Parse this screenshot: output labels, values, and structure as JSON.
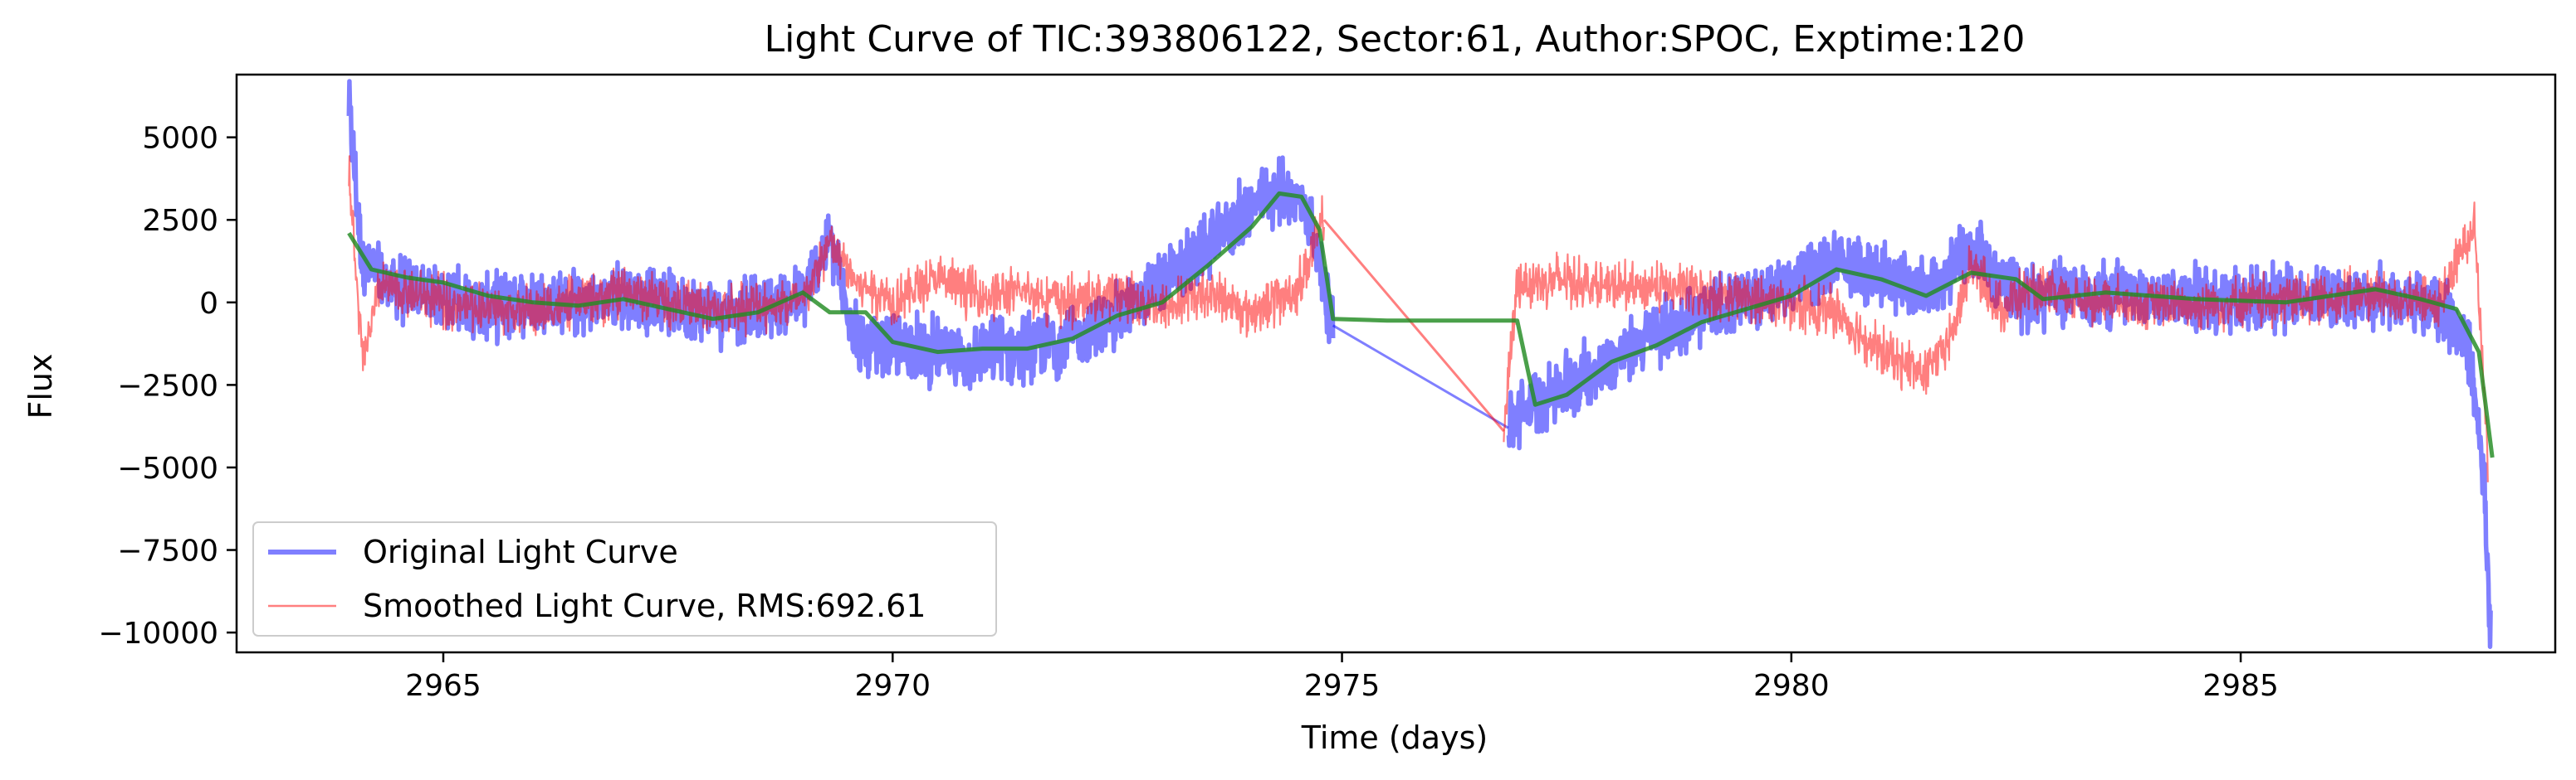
{
  "chart_data": {
    "type": "line",
    "title": "Light Curve of TIC:393806122, Sector:61, Author:SPOC, Exptime:120",
    "xlabel": "Time (days)",
    "ylabel": "Flux",
    "xlim": [
      2962.7,
      2988.5
    ],
    "ylim": [
      -10600,
      6900
    ],
    "xticks": [
      2965,
      2970,
      2975,
      2980,
      2985
    ],
    "xtick_labels": [
      "2965",
      "2970",
      "2975",
      "2980",
      "2985"
    ],
    "yticks": [
      5000,
      2500,
      0,
      -2500,
      -5000,
      -7500,
      -10000
    ],
    "ytick_labels": [
      "5000",
      "2500",
      "0",
      "−2500",
      "−5000",
      "−7500",
      "−10000"
    ],
    "grid": false,
    "legend_position": "lower-left",
    "series": [
      {
        "name": "Original Light Curve",
        "color": "#0000ff",
        "opacity": 0.5,
        "segments": [
          [
            [
              2963.95,
              6000
            ],
            [
              2964.1,
              1200
            ],
            [
              2964.4,
              500
            ],
            [
              2965.0,
              200
            ],
            [
              2965.5,
              -200
            ],
            [
              2966.0,
              100
            ],
            [
              2966.5,
              -100
            ],
            [
              2967.0,
              200
            ],
            [
              2967.5,
              0
            ],
            [
              2968.0,
              -300
            ],
            [
              2968.5,
              -200
            ],
            [
              2969.0,
              100
            ],
            [
              2969.3,
              2000
            ],
            [
              2969.45,
              200
            ],
            [
              2969.7,
              -1500
            ],
            [
              2970.2,
              -1300
            ],
            [
              2970.8,
              -1700
            ],
            [
              2971.3,
              -1400
            ],
            [
              2971.8,
              -1200
            ],
            [
              2972.3,
              -800
            ],
            [
              2972.8,
              200
            ],
            [
              2973.3,
              1200
            ],
            [
              2973.8,
              2500
            ],
            [
              2974.3,
              3400
            ],
            [
              2974.6,
              3000
            ],
            [
              2974.9,
              -700
            ]
          ],
          [
            [
              2976.85,
              -3800
            ],
            [
              2977.0,
              -3300
            ],
            [
              2977.5,
              -2500
            ],
            [
              2978.0,
              -1800
            ],
            [
              2978.5,
              -900
            ],
            [
              2979.0,
              -400
            ],
            [
              2979.5,
              100
            ],
            [
              2980.0,
              600
            ],
            [
              2980.5,
              1200
            ],
            [
              2981.0,
              900
            ],
            [
              2981.5,
              300
            ],
            [
              2982.0,
              1500
            ],
            [
              2982.3,
              900
            ],
            [
              2982.55,
              100
            ],
            [
              2983.0,
              300
            ],
            [
              2984.0,
              200
            ],
            [
              2985.0,
              100
            ],
            [
              2986.0,
              200
            ],
            [
              2986.8,
              0
            ],
            [
              2987.3,
              -400
            ],
            [
              2987.55,
              -1500
            ],
            [
              2987.7,
              -5000
            ],
            [
              2987.78,
              -9800
            ]
          ]
        ]
      },
      {
        "name": "Smoothed Light Curve, RMS:692.61",
        "color": "#ff0000",
        "opacity": 0.5,
        "segments": [
          [
            [
              2963.95,
              3800
            ],
            [
              2964.1,
              -1800
            ],
            [
              2964.3,
              500
            ],
            [
              2965.0,
              0
            ],
            [
              2966.0,
              -300
            ],
            [
              2967.0,
              300
            ],
            [
              2968.0,
              -200
            ],
            [
              2969.0,
              0
            ],
            [
              2969.3,
              1800
            ],
            [
              2969.6,
              600
            ],
            [
              2970.0,
              100
            ],
            [
              2970.5,
              700
            ],
            [
              2971.0,
              200
            ],
            [
              2971.5,
              300
            ],
            [
              2972.0,
              0
            ],
            [
              2972.5,
              300
            ],
            [
              2973.0,
              -200
            ],
            [
              2973.5,
              300
            ],
            [
              2974.0,
              -300
            ],
            [
              2974.5,
              400
            ],
            [
              2974.8,
              2500
            ]
          ],
          [
            [
              2976.8,
              -3900
            ],
            [
              2976.95,
              600
            ],
            [
              2977.5,
              700
            ],
            [
              2978.0,
              400
            ],
            [
              2978.5,
              500
            ],
            [
              2979.0,
              300
            ],
            [
              2979.5,
              100
            ],
            [
              2980.0,
              0
            ],
            [
              2980.5,
              -300
            ],
            [
              2981.0,
              -1500
            ],
            [
              2981.5,
              -2200
            ],
            [
              2981.8,
              -900
            ],
            [
              2982.0,
              1200
            ],
            [
              2982.3,
              -200
            ],
            [
              2982.6,
              300
            ],
            [
              2983.5,
              0
            ],
            [
              2984.5,
              -100
            ],
            [
              2985.5,
              100
            ],
            [
              2986.5,
              200
            ],
            [
              2987.2,
              -100
            ],
            [
              2987.6,
              2500
            ],
            [
              2987.75,
              -4800
            ]
          ]
        ]
      },
      {
        "name": "",
        "color": "#228b22",
        "opacity": 0.82,
        "segments": [
          [
            [
              2963.95,
              2100
            ],
            [
              2964.2,
              1000
            ],
            [
              2964.6,
              750
            ],
            [
              2965.0,
              600
            ],
            [
              2965.5,
              200
            ],
            [
              2966.0,
              0
            ],
            [
              2966.5,
              -100
            ],
            [
              2967.0,
              100
            ],
            [
              2967.5,
              -200
            ],
            [
              2968.0,
              -500
            ],
            [
              2968.5,
              -300
            ],
            [
              2969.0,
              300
            ],
            [
              2969.3,
              -300
            ],
            [
              2969.7,
              -300
            ],
            [
              2970.0,
              -1200
            ],
            [
              2970.5,
              -1500
            ],
            [
              2971.0,
              -1400
            ],
            [
              2971.5,
              -1400
            ],
            [
              2972.0,
              -1100
            ],
            [
              2972.5,
              -400
            ],
            [
              2973.0,
              0
            ],
            [
              2973.5,
              1100
            ],
            [
              2974.0,
              2300
            ],
            [
              2974.3,
              3300
            ],
            [
              2974.55,
              3200
            ],
            [
              2974.75,
              2200
            ],
            [
              2974.9,
              -500
            ],
            [
              2975.5,
              -550
            ],
            [
              2976.5,
              -550
            ],
            [
              2976.95,
              -550
            ],
            [
              2977.15,
              -3100
            ],
            [
              2977.5,
              -2800
            ],
            [
              2978.0,
              -1800
            ],
            [
              2978.5,
              -1300
            ],
            [
              2979.0,
              -600
            ],
            [
              2979.5,
              -200
            ],
            [
              2980.0,
              200
            ],
            [
              2980.5,
              1000
            ],
            [
              2981.0,
              700
            ],
            [
              2981.5,
              200
            ],
            [
              2982.0,
              900
            ],
            [
              2982.5,
              700
            ],
            [
              2982.8,
              100
            ],
            [
              2983.5,
              300
            ],
            [
              2984.5,
              100
            ],
            [
              2985.5,
              0
            ],
            [
              2986.5,
              400
            ],
            [
              2987.0,
              100
            ],
            [
              2987.4,
              -200
            ],
            [
              2987.65,
              -1500
            ],
            [
              2987.8,
              -4700
            ]
          ]
        ]
      }
    ]
  }
}
